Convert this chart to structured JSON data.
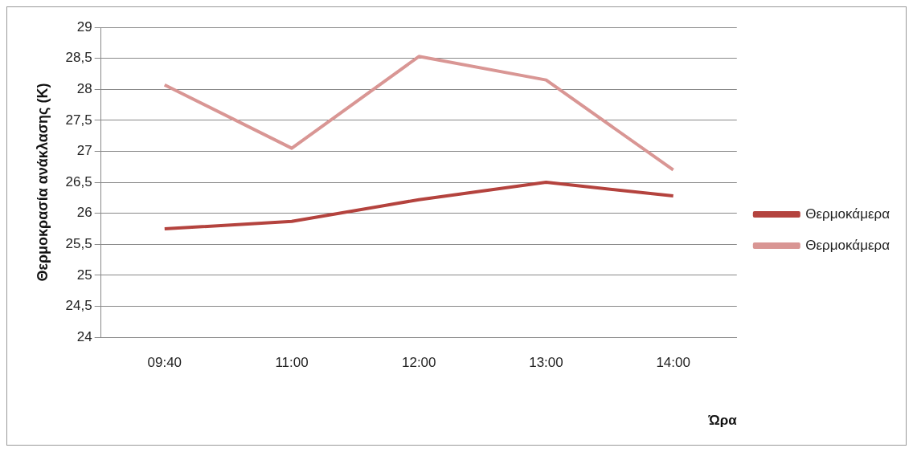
{
  "chart_data": {
    "type": "line",
    "xlabel": "Ώρα",
    "ylabel": "Θερμοκρασία ανάκλασης (K)",
    "categories": [
      "09:40",
      "11:00",
      "12:00",
      "13:00",
      "14:00"
    ],
    "series": [
      {
        "name": "Θερμοκάμερα",
        "color": "#b4433e",
        "values": [
          25.75,
          25.87,
          26.22,
          26.5,
          26.28
        ]
      },
      {
        "name": "Θερμοκάμερα",
        "color": "#d99694",
        "values": [
          28.07,
          27.05,
          28.53,
          28.15,
          26.7
        ]
      }
    ],
    "ylim": [
      24,
      29
    ],
    "yticks": [
      24,
      {
        "value": 24.5,
        "label": "24,5"
      },
      25,
      {
        "value": 25.5,
        "label": "25,5"
      },
      26,
      {
        "value": 26.5,
        "label": "26,5"
      },
      27,
      {
        "value": 27.5,
        "label": "27,5"
      },
      28,
      {
        "value": 28.5,
        "label": "28,5"
      },
      29
    ],
    "grid": "y",
    "legend": "right",
    "marker": "none",
    "line_style": "solid"
  }
}
